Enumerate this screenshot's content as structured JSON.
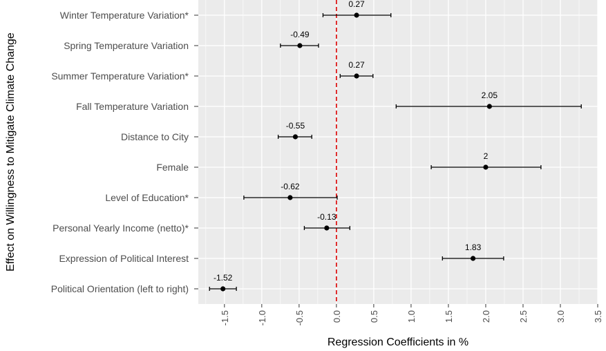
{
  "chart_data": {
    "type": "scatter",
    "subtype": "coefficient-plot-with-error-bars",
    "title": "",
    "xlabel": "Regression Coefficients in %",
    "ylabel": "Effect on Willingness to Mitigate Climate Change",
    "xlim": [
      -1.85,
      3.5
    ],
    "x_ticks": [
      -1.5,
      -1.0,
      -0.5,
      0.0,
      0.5,
      1.0,
      1.5,
      2.0,
      2.5,
      3.0,
      3.5
    ],
    "x_tick_labels": [
      "-1.5",
      "-1.0",
      "-0.5",
      "0.0",
      "0.5",
      "1.0",
      "1.5",
      "2.0",
      "2.5",
      "3.0",
      "3.5"
    ],
    "reference_line": {
      "x": 0,
      "style": "dashed",
      "color": "#dd0000"
    },
    "grid": true,
    "legend": "none",
    "colors": {
      "panel": "#ebebeb",
      "grid": "#ffffff",
      "point": "#000000",
      "reference": "#dd0000"
    },
    "points": [
      {
        "category": "Winter Temperature Variation*",
        "value": 0.27,
        "label": "0.27",
        "lower": -0.18,
        "upper": 0.73
      },
      {
        "category": "Spring Temperature Variation",
        "value": -0.49,
        "label": "-0.49",
        "lower": -0.75,
        "upper": -0.24
      },
      {
        "category": "Summer Temperature Variation*",
        "value": 0.27,
        "label": "0.27",
        "lower": 0.05,
        "upper": 0.49
      },
      {
        "category": "Fall Temperature Variation",
        "value": 2.05,
        "label": "2.05",
        "lower": 0.8,
        "upper": 3.28
      },
      {
        "category": "Distance to City",
        "value": -0.55,
        "label": "-0.55",
        "lower": -0.78,
        "upper": -0.33
      },
      {
        "category": "Female",
        "value": 2.0,
        "label": "2",
        "lower": 1.27,
        "upper": 2.74
      },
      {
        "category": "Level of Education*",
        "value": -0.62,
        "label": "-0.62",
        "lower": -1.24,
        "upper": 0.01
      },
      {
        "category": "Personal Yearly Income (netto)*",
        "value": -0.13,
        "label": "-0.13",
        "lower": -0.43,
        "upper": 0.18
      },
      {
        "category": "Expression of Political Interest",
        "value": 1.83,
        "label": "1.83",
        "lower": 1.42,
        "upper": 2.24
      },
      {
        "category": "Political Orientation (left to right)",
        "value": -1.52,
        "label": "-1.52",
        "lower": -1.7,
        "upper": -1.34
      }
    ]
  }
}
